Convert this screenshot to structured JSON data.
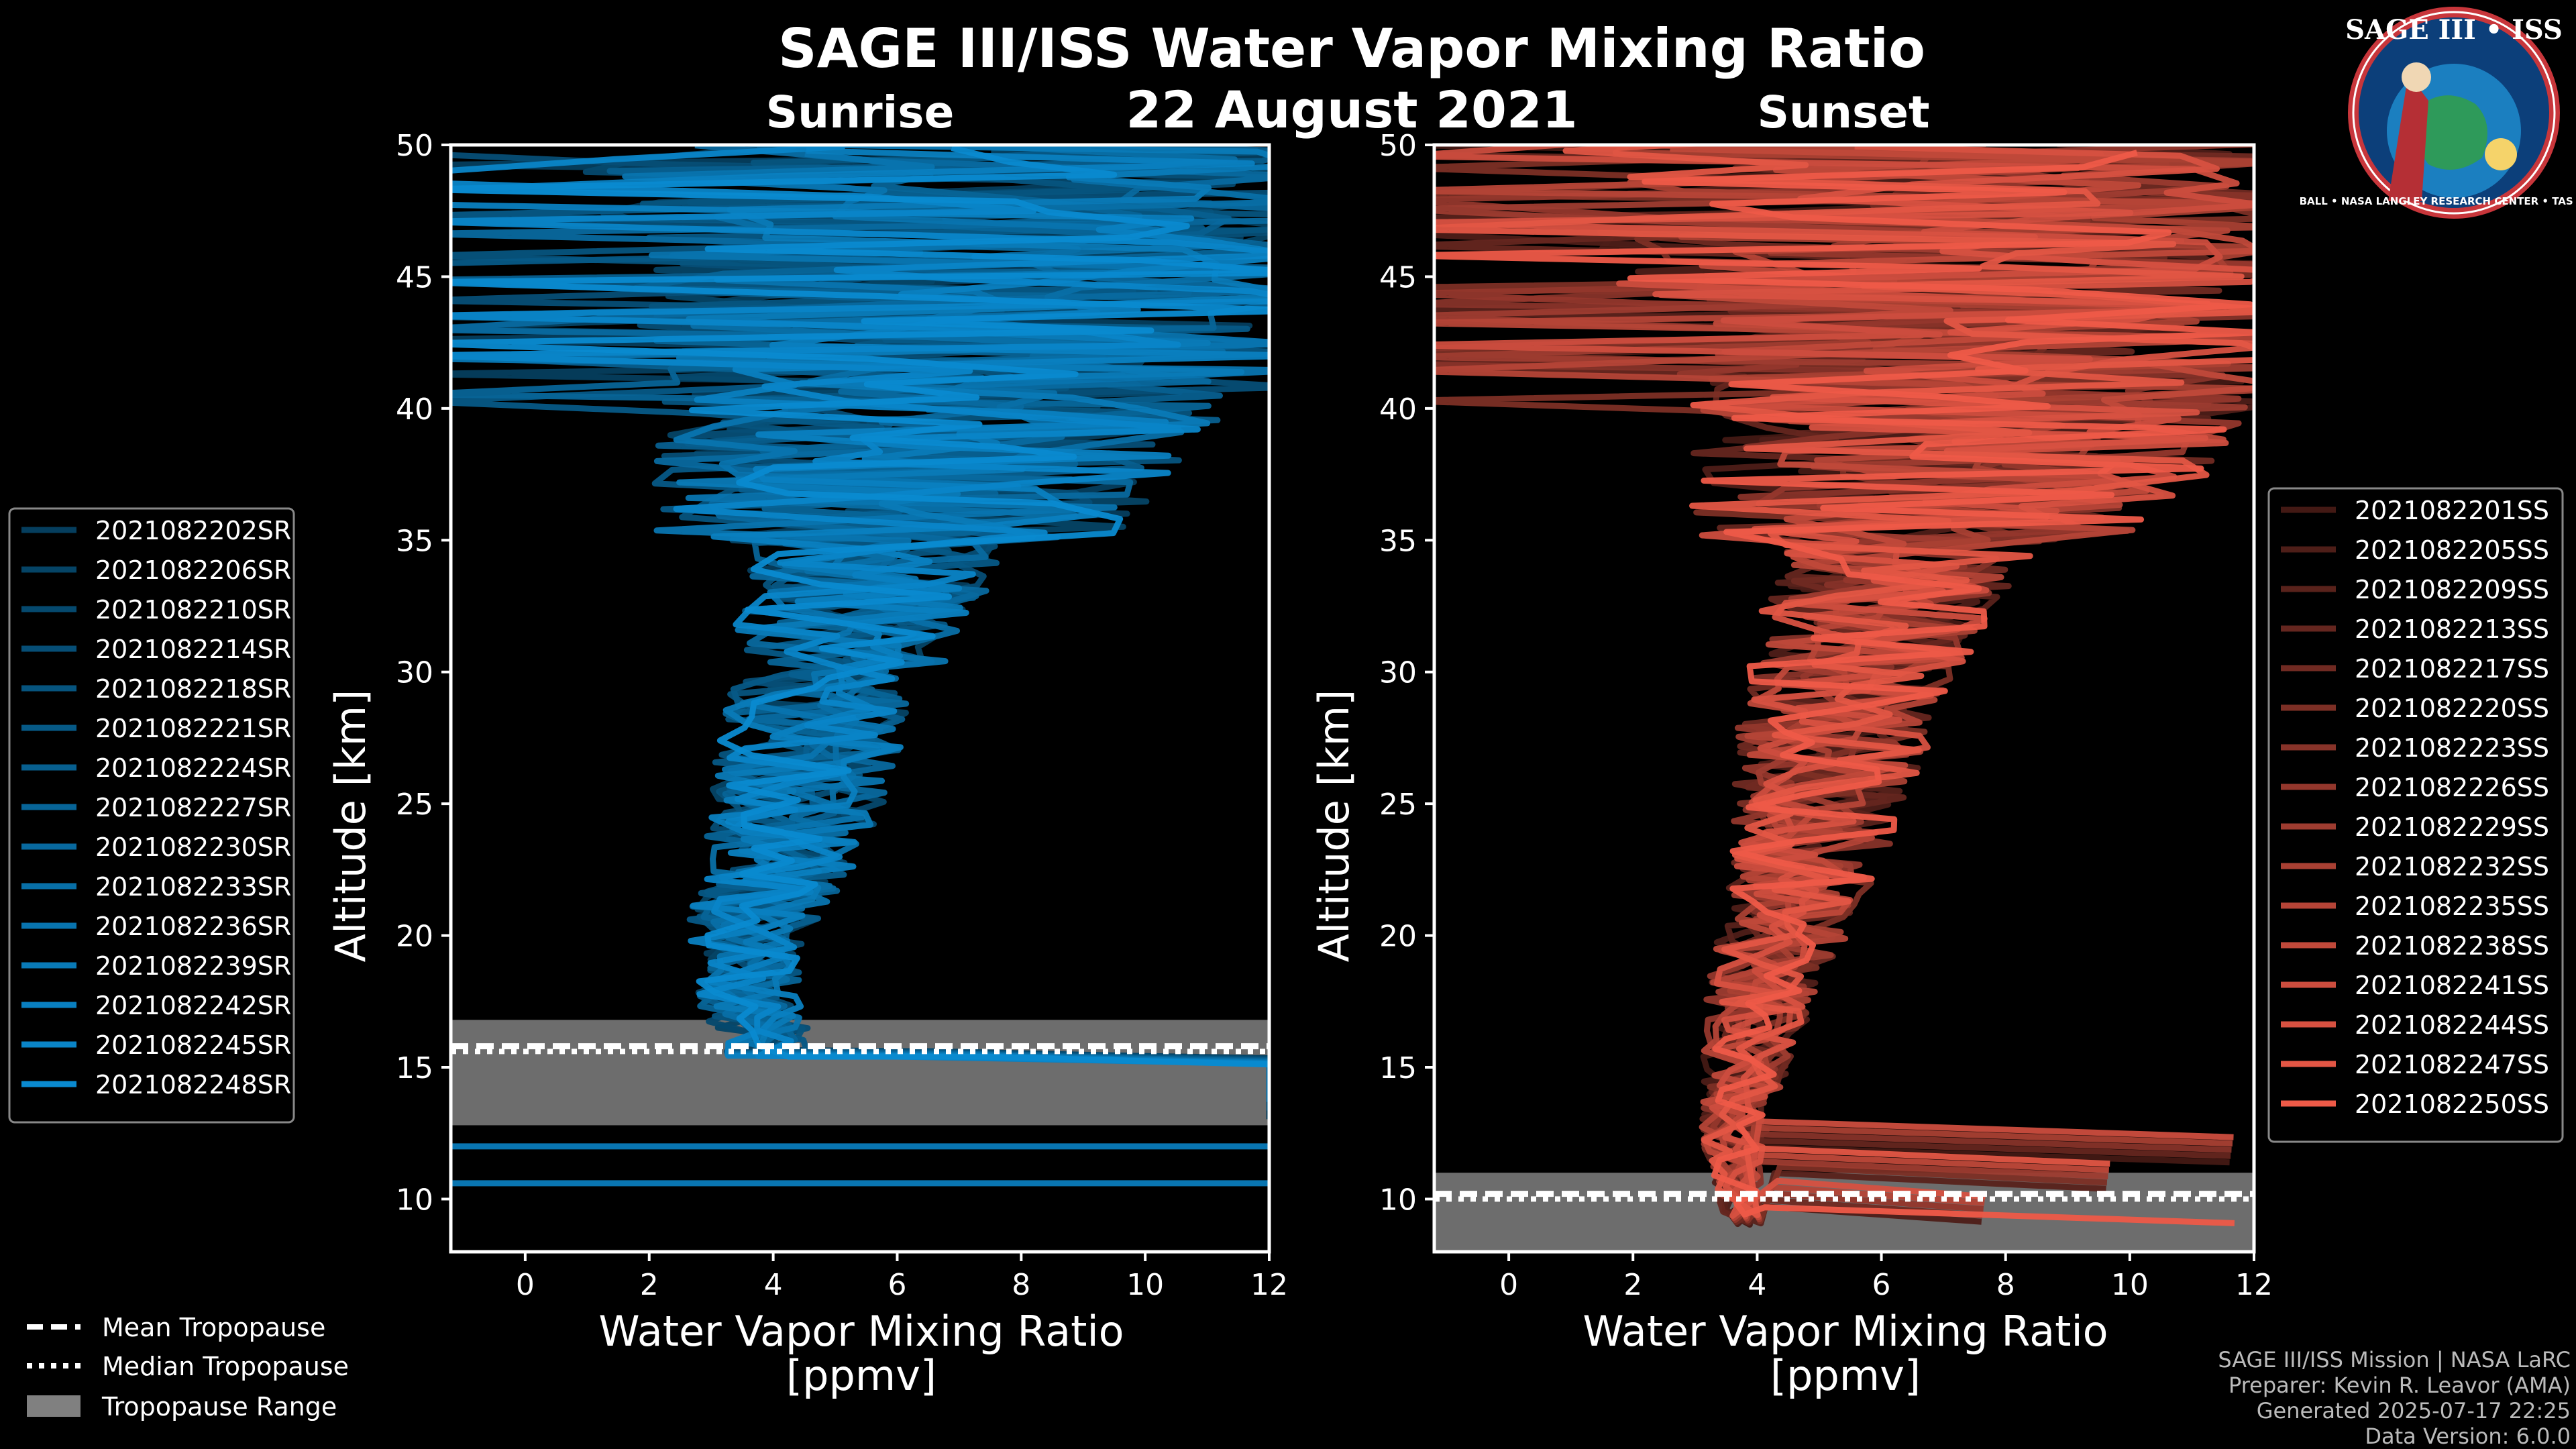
{
  "title": "SAGE III/ISS Water Vapor Mixing Ratio",
  "date": "22 August 2021",
  "logo": {
    "text": "SAGE III • ISS",
    "ring_text": "BALL • NASA LANGLEY RESEARCH CENTER • TAS • ESA"
  },
  "colors": {
    "sunrise": "#0a8ad0",
    "sunset": "#ee5a48",
    "tropopause_fill": "#808080"
  },
  "chart_data": [
    {
      "id": "sunrise",
      "type": "line",
      "subtitle": "Sunrise",
      "xlabel_line1": "Water Vapor Mixing Ratio",
      "xlabel_line2": "[ppmv]",
      "ylabel": "Altitude [km]",
      "xlim": [
        -1.2,
        12
      ],
      "ylim": [
        8,
        50
      ],
      "xticks": [
        0,
        2,
        4,
        6,
        8,
        10,
        12
      ],
      "yticks": [
        10,
        15,
        20,
        25,
        30,
        35,
        40,
        45,
        50
      ],
      "series_names": [
        "2021082202SR",
        "2021082206SR",
        "2021082210SR",
        "2021082214SR",
        "2021082218SR",
        "2021082221SR",
        "2021082224SR",
        "2021082227SR",
        "2021082230SR",
        "2021082233SR",
        "2021082236SR",
        "2021082239SR",
        "2021082242SR",
        "2021082245SR",
        "2021082248SR"
      ],
      "profile_shape": [
        [
          16,
          3.9
        ],
        [
          18,
          3.5
        ],
        [
          20,
          3.6
        ],
        [
          22,
          4.0
        ],
        [
          25,
          4.4
        ],
        [
          28,
          4.7
        ],
        [
          30,
          5.0
        ],
        [
          32,
          5.3
        ],
        [
          35,
          5.8
        ],
        [
          38,
          6.3
        ],
        [
          40,
          6.8
        ],
        [
          45,
          6.8
        ],
        [
          50,
          6.5
        ]
      ],
      "tropopause": {
        "min_km": 12.8,
        "max_km": 16.8,
        "mean_km": 15.8,
        "median_km": 15.6
      }
    },
    {
      "id": "sunset",
      "type": "line",
      "subtitle": "Sunset",
      "xlabel_line1": "Water Vapor Mixing Ratio",
      "xlabel_line2": "[ppmv]",
      "ylabel": "Altitude [km]",
      "xlim": [
        -1.2,
        12
      ],
      "ylim": [
        8,
        50
      ],
      "xticks": [
        0,
        2,
        4,
        6,
        8,
        10,
        12
      ],
      "yticks": [
        10,
        15,
        20,
        25,
        30,
        35,
        40,
        45,
        50
      ],
      "series_names": [
        "2021082201SS",
        "2021082205SS",
        "2021082209SS",
        "2021082213SS",
        "2021082217SS",
        "2021082220SS",
        "2021082223SS",
        "2021082226SS",
        "2021082229SS",
        "2021082232SS",
        "2021082235SS",
        "2021082238SS",
        "2021082241SS",
        "2021082244SS",
        "2021082247SS",
        "2021082250SS"
      ],
      "profile_shape": [
        [
          9,
          3.8
        ],
        [
          12,
          3.6
        ],
        [
          15,
          3.8
        ],
        [
          18,
          4.1
        ],
        [
          20,
          4.4
        ],
        [
          22,
          4.7
        ],
        [
          25,
          5.0
        ],
        [
          28,
          5.3
        ],
        [
          30,
          5.6
        ],
        [
          32,
          5.9
        ],
        [
          35,
          6.5
        ],
        [
          38,
          7.2
        ],
        [
          40,
          7.4
        ],
        [
          45,
          7.0
        ],
        [
          50,
          6.8
        ]
      ],
      "tropopause": {
        "min_km": 8.0,
        "max_km": 11.0,
        "mean_km": 10.2,
        "median_km": 10.0
      }
    }
  ],
  "tropopause_legend": [
    "Mean Tropopause",
    "Median Tropopause",
    "Tropopause Range"
  ],
  "credits": [
    "SAGE III/ISS Mission | NASA LaRC",
    "Preparer: Kevin R. Leavor (AMA)",
    "Generated 2025-07-17 22:25",
    "Data Version: 6.0.0"
  ]
}
